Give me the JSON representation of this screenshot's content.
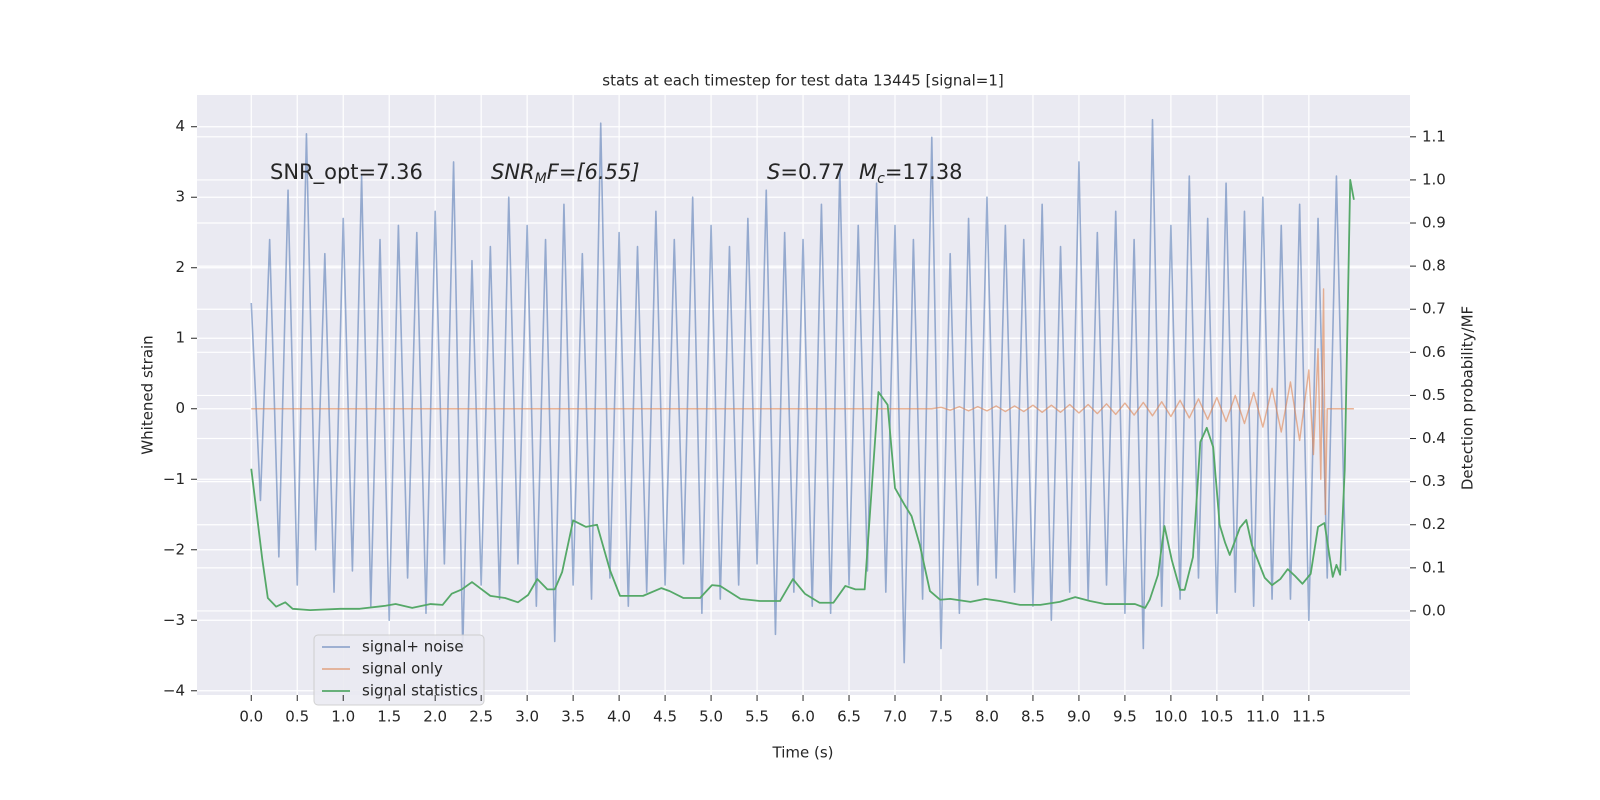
{
  "chart_data": {
    "type": "line",
    "title": "stats at each timestep for test data 13445 [signal=1]",
    "xlabel": "Time (s)",
    "ylabel": "Whitened strain",
    "y2label": "Detection probability/MF",
    "annotations": [
      [
        "SNR_opt=7.36"
      ],
      [
        "SNR",
        "M",
        "F=[6.55]"
      ],
      [
        "S",
        "=0.77"
      ],
      [
        "M",
        "c",
        "=17.38"
      ]
    ],
    "xlim": [
      -0.59,
      12.6
    ],
    "ylim": [
      -4.06,
      4.45
    ],
    "y2lim": [
      -0.195,
      1.197
    ],
    "xticks": [
      {
        "value": 0,
        "label": "0.0"
      },
      0.5,
      {
        "value": 1,
        "label": "1.0"
      },
      1.5,
      {
        "value": 2,
        "label": "2.0"
      },
      2.5,
      {
        "value": 3,
        "label": "3.0"
      },
      3.5,
      {
        "value": 4,
        "label": "4.0"
      },
      4.5,
      {
        "value": 5,
        "label": "5.0"
      },
      5.5,
      {
        "value": 6,
        "label": "6.0"
      },
      6.5,
      {
        "value": 7,
        "label": "7.0"
      },
      7.5,
      {
        "value": 8,
        "label": "8.0"
      },
      8.5,
      {
        "value": 9,
        "label": "9.0"
      },
      9.5,
      {
        "value": 10,
        "label": "10.0"
      },
      10.5,
      {
        "value": 11,
        "label": "11.0"
      },
      11.5
    ],
    "yticks": [
      {
        "value": -4,
        "label": "−4"
      },
      {
        "value": -3,
        "label": "−3"
      },
      {
        "value": -2,
        "label": "−2"
      },
      {
        "value": -1,
        "label": "−1"
      },
      0,
      1,
      2,
      3,
      4
    ],
    "y2ticks": [
      {
        "value": 0,
        "label": "0.0"
      },
      0.1,
      0.2,
      0.3,
      0.4,
      0.5,
      0.6,
      0.7,
      0.8,
      0.9,
      {
        "value": 1,
        "label": "1.0"
      },
      1.1
    ],
    "grid": true,
    "legend": "lower left",
    "series": [
      {
        "name": "signal+ noise",
        "color": "#4c72b0",
        "x": [
          0.0,
          0.1,
          0.2,
          0.3,
          0.4,
          0.5,
          0.6,
          0.7,
          0.8,
          0.9,
          1.0,
          1.1,
          1.2,
          1.3,
          1.4,
          1.5,
          1.6,
          1.7,
          1.8,
          1.9,
          2.0,
          2.1,
          2.2,
          2.3,
          2.4,
          2.5,
          2.6,
          2.7,
          2.8,
          2.9,
          3.0,
          3.1,
          3.2,
          3.3,
          3.4,
          3.5,
          3.6,
          3.7,
          3.8,
          3.9,
          4.0,
          4.1,
          4.2,
          4.3,
          4.4,
          4.5,
          4.6,
          4.7,
          4.8,
          4.9,
          5.0,
          5.1,
          5.2,
          5.3,
          5.4,
          5.5,
          5.6,
          5.7,
          5.8,
          5.9,
          6.0,
          6.1,
          6.2,
          6.3,
          6.4,
          6.5,
          6.6,
          6.7,
          6.8,
          6.9,
          7.0,
          7.1,
          7.2,
          7.3,
          7.4,
          7.5,
          7.6,
          7.7,
          7.8,
          7.9,
          8.0,
          8.1,
          8.2,
          8.3,
          8.4,
          8.5,
          8.6,
          8.7,
          8.8,
          8.9,
          9.0,
          9.1,
          9.2,
          9.3,
          9.4,
          9.5,
          9.6,
          9.7,
          9.8,
          9.9,
          10.0,
          10.1,
          10.2,
          10.3,
          10.4,
          10.5,
          10.6,
          10.7,
          10.8,
          10.9,
          11.0,
          11.1,
          11.2,
          11.3,
          11.4,
          11.5,
          11.6,
          11.7,
          11.8,
          11.9
        ],
        "values": [
          1.5,
          -1.3,
          2.4,
          -2.1,
          3.1,
          -2.5,
          3.9,
          -2.0,
          2.2,
          -2.6,
          2.7,
          -2.3,
          3.3,
          -2.8,
          2.4,
          -3.0,
          2.6,
          -2.4,
          2.5,
          -2.9,
          2.8,
          -2.2,
          3.5,
          -3.4,
          2.1,
          -2.5,
          2.3,
          -2.7,
          3.0,
          -2.2,
          2.6,
          -2.8,
          2.4,
          -3.3,
          2.9,
          -2.5,
          2.2,
          -2.7,
          4.05,
          -2.4,
          2.5,
          -2.8,
          2.3,
          -2.6,
          2.8,
          -2.5,
          2.4,
          -2.2,
          3.0,
          -2.9,
          2.6,
          -2.7,
          2.3,
          -2.5,
          2.7,
          -2.2,
          3.1,
          -3.2,
          2.5,
          -2.6,
          2.4,
          -2.8,
          2.9,
          -2.9,
          3.4,
          -2.5,
          2.6,
          -2.3,
          3.2,
          -2.6,
          2.6,
          -3.6,
          2.4,
          -2.7,
          3.85,
          -3.4,
          2.2,
          -2.9,
          2.7,
          -2.5,
          3.0,
          -2.4,
          2.6,
          -2.6,
          2.4,
          -2.8,
          2.9,
          -3.0,
          2.3,
          -2.6,
          3.5,
          -2.7,
          2.5,
          -2.5,
          2.8,
          -2.9,
          2.4,
          -3.4,
          4.1,
          -2.8,
          2.6,
          -2.7,
          3.3,
          -2.4,
          2.7,
          -2.9,
          3.2,
          -2.6,
          2.8,
          -2.8,
          3.0,
          -2.7,
          2.6,
          -2.7,
          2.9,
          -3.0,
          2.7,
          -2.4,
          3.3,
          -2.3
        ]
      },
      {
        "name": "signal only",
        "color": "#dd8452",
        "x": [
          0.0,
          7.4,
          7.5,
          7.6,
          7.7,
          7.8,
          7.9,
          8.0,
          8.1,
          8.2,
          8.3,
          8.4,
          8.5,
          8.6,
          8.7,
          8.8,
          8.9,
          9.0,
          9.1,
          9.2,
          9.3,
          9.4,
          9.5,
          9.6,
          9.7,
          9.8,
          9.9,
          10.0,
          10.1,
          10.2,
          10.3,
          10.4,
          10.5,
          10.6,
          10.7,
          10.8,
          10.9,
          11.0,
          11.1,
          11.2,
          11.3,
          11.4,
          11.5,
          11.55,
          11.6,
          11.63,
          11.66,
          11.68,
          11.7,
          11.99
        ],
        "values": [
          0,
          0,
          0.02,
          -0.02,
          0.03,
          -0.03,
          0.03,
          -0.03,
          0.04,
          -0.04,
          0.04,
          -0.04,
          0.05,
          -0.05,
          0.05,
          -0.05,
          0.06,
          -0.06,
          0.06,
          -0.07,
          0.07,
          -0.08,
          0.08,
          -0.09,
          0.09,
          -0.1,
          0.1,
          -0.11,
          0.12,
          -0.13,
          0.14,
          -0.15,
          0.16,
          -0.18,
          0.19,
          -0.21,
          0.23,
          -0.26,
          0.29,
          -0.33,
          0.38,
          -0.45,
          0.55,
          -0.65,
          0.85,
          -1.0,
          1.7,
          -1.5,
          0,
          0
        ]
      },
      {
        "name": "signal statistics",
        "color": "#55a868",
        "axis": "y2",
        "x": [
          0.0,
          0.12,
          0.18,
          0.27,
          0.37,
          0.45,
          0.64,
          0.97,
          1.18,
          1.46,
          1.57,
          1.75,
          1.95,
          2.08,
          2.18,
          2.29,
          2.4,
          2.6,
          2.76,
          2.9,
          3.01,
          3.11,
          3.22,
          3.3,
          3.38,
          3.5,
          3.64,
          3.76,
          3.9,
          4.01,
          4.14,
          4.26,
          4.46,
          4.55,
          4.7,
          4.88,
          5.01,
          5.1,
          5.32,
          5.53,
          5.75,
          5.89,
          6.02,
          6.18,
          6.33,
          6.46,
          6.57,
          6.67,
          6.82,
          6.92,
          7.0,
          7.11,
          7.18,
          7.27,
          7.38,
          7.49,
          7.6,
          7.82,
          7.98,
          8.14,
          8.36,
          8.58,
          8.79,
          8.96,
          9.12,
          9.28,
          9.5,
          9.61,
          9.72,
          9.77,
          9.86,
          9.93,
          10.01,
          10.1,
          10.15,
          10.24,
          10.32,
          10.39,
          10.46,
          10.53,
          10.59,
          10.64,
          10.75,
          10.82,
          10.88,
          11.02,
          11.1,
          11.19,
          11.27,
          11.35,
          11.43,
          11.52,
          11.6,
          11.67,
          11.76,
          11.8,
          11.84,
          11.89,
          11.95,
          11.99
        ],
        "values": [
          0.33,
          0.12,
          0.03,
          0.01,
          0.02,
          0.005,
          0.002,
          0.005,
          0.005,
          0.012,
          0.016,
          0.007,
          0.016,
          0.014,
          0.04,
          0.05,
          0.067,
          0.035,
          0.03,
          0.02,
          0.037,
          0.074,
          0.05,
          0.05,
          0.09,
          0.21,
          0.195,
          0.2,
          0.095,
          0.035,
          0.035,
          0.035,
          0.053,
          0.046,
          0.03,
          0.03,
          0.06,
          0.058,
          0.028,
          0.023,
          0.023,
          0.074,
          0.04,
          0.019,
          0.019,
          0.058,
          0.05,
          0.05,
          0.508,
          0.478,
          0.285,
          0.244,
          0.22,
          0.153,
          0.046,
          0.026,
          0.028,
          0.021,
          0.028,
          0.023,
          0.014,
          0.014,
          0.021,
          0.032,
          0.023,
          0.016,
          0.016,
          0.016,
          0.007,
          0.026,
          0.084,
          0.197,
          0.118,
          0.049,
          0.049,
          0.125,
          0.392,
          0.425,
          0.38,
          0.2,
          0.158,
          0.13,
          0.193,
          0.211,
          0.153,
          0.077,
          0.06,
          0.074,
          0.097,
          0.081,
          0.063,
          0.086,
          0.195,
          0.204,
          0.079,
          0.107,
          0.084,
          0.327,
          1.0,
          0.954
        ]
      }
    ]
  }
}
